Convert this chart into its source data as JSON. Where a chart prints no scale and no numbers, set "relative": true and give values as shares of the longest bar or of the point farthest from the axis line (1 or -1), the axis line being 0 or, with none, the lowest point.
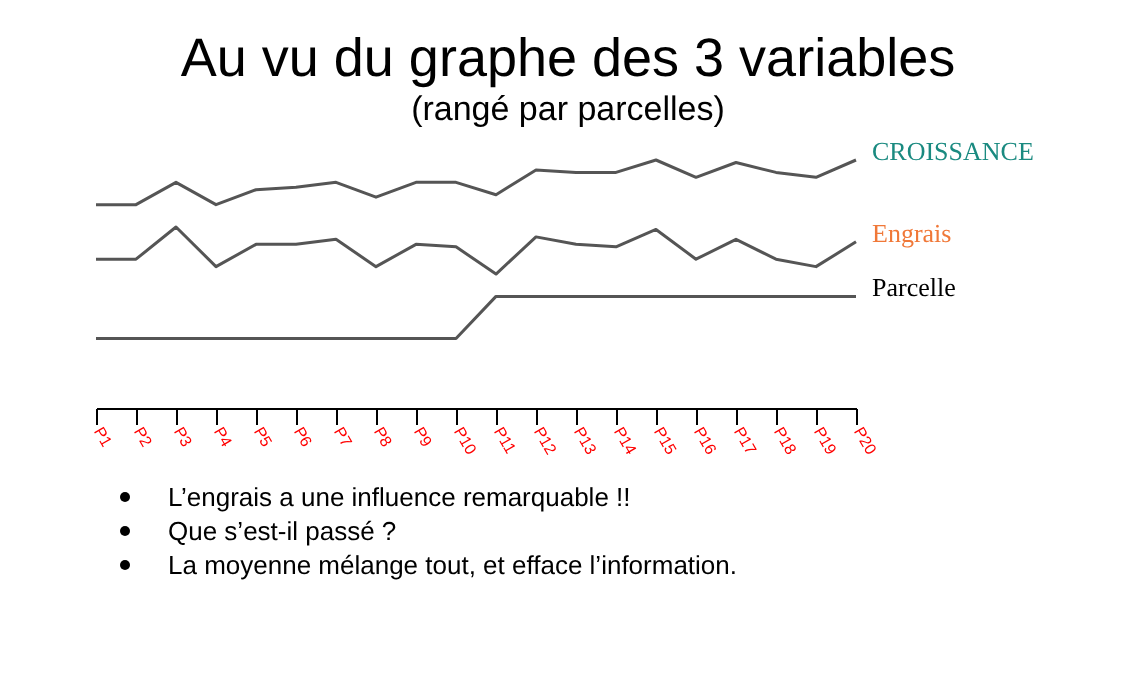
{
  "chart_data": {
    "type": "line",
    "title": "Au vu du graphe des 3 variables",
    "subtitle": "(rangé par parcelles)",
    "categories": [
      "P1",
      "P2",
      "P3",
      "P4",
      "P5",
      "P6",
      "P7",
      "P8",
      "P9",
      "P10",
      "P11",
      "P12",
      "P13",
      "P14",
      "P15",
      "P16",
      "P17",
      "P18",
      "P19",
      "P20"
    ],
    "relative": true,
    "legend": false,
    "grid": false,
    "series": [
      {
        "name": "CROISSANCE",
        "color": "#555555",
        "values": [
          0.82,
          0.82,
          0.91,
          0.82,
          0.88,
          0.89,
          0.91,
          0.85,
          0.91,
          0.91,
          0.86,
          0.96,
          0.95,
          0.95,
          1,
          0.93,
          0.99,
          0.95,
          0.93,
          1
        ]
      },
      {
        "name": "Engrais",
        "color": "#555555",
        "values": [
          0.6,
          0.6,
          0.73,
          0.57,
          0.66,
          0.66,
          0.68,
          0.57,
          0.66,
          0.65,
          0.54,
          0.69,
          0.66,
          0.65,
          0.72,
          0.6,
          0.68,
          0.6,
          0.57,
          0.67
        ]
      },
      {
        "name": "Parcelle",
        "color": "#555555",
        "values": [
          0.28,
          0.28,
          0.28,
          0.28,
          0.28,
          0.28,
          0.28,
          0.28,
          0.28,
          0.28,
          0.45,
          0.45,
          0.45,
          0.45,
          0.45,
          0.45,
          0.45,
          0.45,
          0.45,
          0.45
        ]
      }
    ],
    "annotations": [
      "L’engrais a une influence remarquable !!",
      "Que s’est-il passé ?",
      "La moyenne mélange tout, et efface l’information."
    ]
  }
}
